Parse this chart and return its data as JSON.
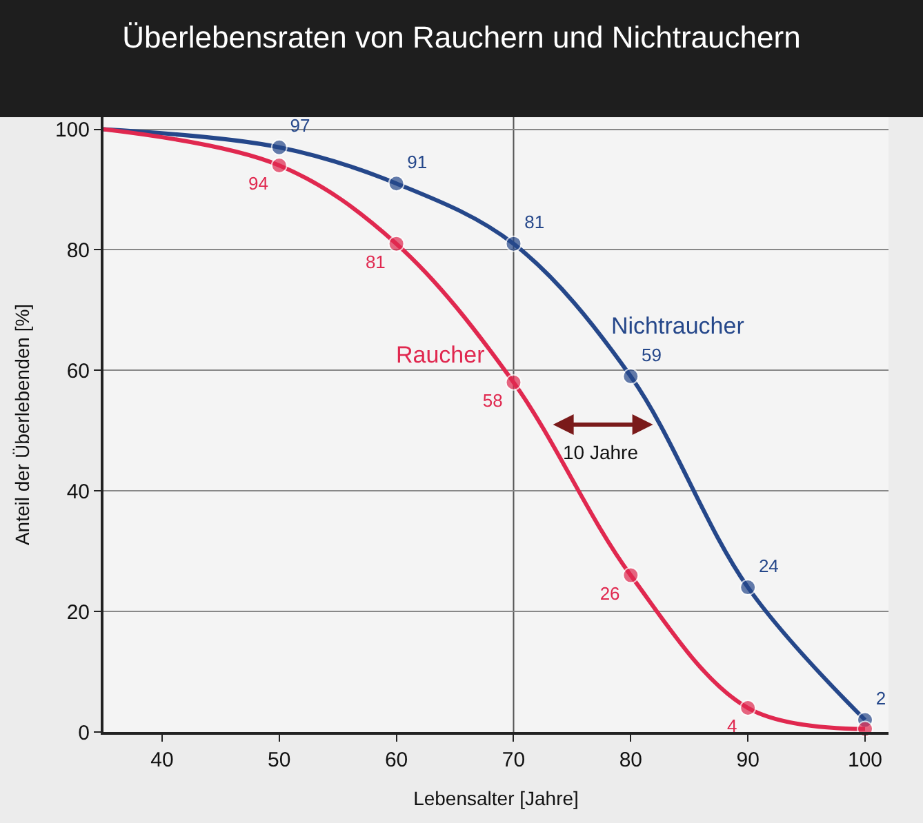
{
  "chart_data": {
    "type": "line",
    "title": "Überlebensraten von Rauchern und Nichtrauchern",
    "xlabel": "Lebensalter [Jahre]",
    "ylabel": "Anteil der Überlebenden [%]",
    "x": [
      35,
      50,
      60,
      70,
      80,
      90,
      100
    ],
    "series": [
      {
        "name": "Nichtraucher",
        "color": "#25478a",
        "values": [
          100,
          97,
          91,
          81,
          59,
          24,
          2
        ],
        "value_labels": [
          null,
          "97",
          "91",
          "81",
          "59",
          "24",
          "2"
        ]
      },
      {
        "name": "Raucher",
        "color": "#e0284f",
        "values": [
          100,
          94,
          81,
          58,
          26,
          4,
          0.5
        ],
        "value_labels": [
          null,
          "94",
          "81",
          "58",
          "26",
          "4",
          null
        ]
      }
    ],
    "xlim": [
      35,
      102
    ],
    "xticks": [
      40,
      50,
      60,
      70,
      80,
      90,
      100
    ],
    "ylim": [
      0,
      102
    ],
    "yticks": [
      0,
      20,
      40,
      60,
      80,
      100
    ],
    "grid": "y",
    "marker": "circle",
    "line_style": "solid",
    "legend": false,
    "ref_lines": [
      {
        "axis": "x",
        "value": 70,
        "label": null,
        "color": "#555555"
      }
    ],
    "annotations": [
      "10 Jahre"
    ]
  }
}
